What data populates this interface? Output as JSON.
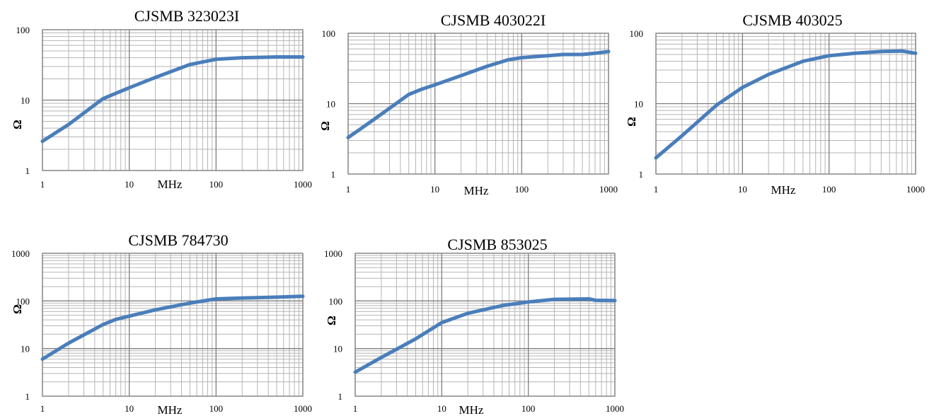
{
  "chart_data": [
    {
      "type": "line",
      "title": "CJSMB 323023I",
      "xlabel": "MHz",
      "ylabel": "Ω",
      "x_scale": "log",
      "y_scale": "log",
      "xlim": [
        1,
        1000
      ],
      "ylim": [
        1,
        100
      ],
      "x_ticks": [
        "1",
        "10",
        "100",
        "1000"
      ],
      "y_ticks": [
        "1",
        "10",
        "100"
      ],
      "grid": true,
      "line_color": "#4a7ebb",
      "series": [
        {
          "points": [
            [
              1,
              2.6
            ],
            [
              2,
              4.5
            ],
            [
              5,
              10.5
            ],
            [
              10,
              15
            ],
            [
              20,
              21
            ],
            [
              50,
              32
            ],
            [
              100,
              38
            ],
            [
              200,
              40
            ],
            [
              500,
              41
            ],
            [
              1000,
              41
            ]
          ]
        }
      ]
    },
    {
      "type": "line",
      "title": "CJSMB 403022I",
      "xlabel": "MHz",
      "ylabel": "Ω",
      "x_scale": "log",
      "y_scale": "log",
      "xlim": [
        1,
        1000
      ],
      "ylim": [
        1,
        100
      ],
      "x_ticks": [
        "1",
        "10",
        "MHz",
        "100",
        "1000"
      ],
      "y_ticks": [
        "1",
        "10",
        "100"
      ],
      "grid": true,
      "line_color": "#4a7ebb",
      "series": [
        {
          "points": [
            [
              1,
              3.3
            ],
            [
              2,
              6
            ],
            [
              5,
              13.5
            ],
            [
              7,
              16
            ],
            [
              10,
              18.5
            ],
            [
              20,
              25
            ],
            [
              40,
              34
            ],
            [
              70,
              42
            ],
            [
              100,
              45
            ],
            [
              200,
              48
            ],
            [
              300,
              50
            ],
            [
              500,
              50
            ],
            [
              700,
              52
            ],
            [
              1000,
              55
            ]
          ]
        }
      ]
    },
    {
      "type": "line",
      "title": "CJSMB 403025",
      "xlabel": "MHz",
      "ylabel": "Ω",
      "x_scale": "log",
      "y_scale": "log",
      "xlim": [
        1,
        1000
      ],
      "ylim": [
        1,
        100
      ],
      "x_ticks": [
        "1",
        "10",
        "100",
        "1000"
      ],
      "y_ticks": [
        "1",
        "10",
        "100"
      ],
      "grid": true,
      "line_color": "#4a7ebb",
      "series": [
        {
          "points": [
            [
              1,
              1.7
            ],
            [
              2,
              3.5
            ],
            [
              5,
              9.5
            ],
            [
              10,
              17
            ],
            [
              20,
              26
            ],
            [
              50,
              40
            ],
            [
              100,
              48
            ],
            [
              200,
              52
            ],
            [
              400,
              55
            ],
            [
              700,
              56
            ],
            [
              1000,
              52
            ]
          ]
        }
      ]
    },
    {
      "type": "line",
      "title": "CJSMB 784730",
      "xlabel": "MHz",
      "ylabel": "Ω",
      "x_scale": "log",
      "y_scale": "log",
      "xlim": [
        1,
        1000
      ],
      "ylim": [
        1,
        1000
      ],
      "x_ticks": [
        "1",
        "10",
        "100",
        "1000"
      ],
      "y_ticks": [
        "1",
        "10",
        "100",
        "1000"
      ],
      "grid": true,
      "line_color": "#4a7ebb",
      "series": [
        {
          "points": [
            [
              1,
              6
            ],
            [
              2,
              13
            ],
            [
              5,
              32
            ],
            [
              7,
              41
            ],
            [
              10,
              48
            ],
            [
              20,
              65
            ],
            [
              50,
              90
            ],
            [
              100,
              110
            ],
            [
              200,
              115
            ],
            [
              500,
              120
            ],
            [
              1000,
              125
            ]
          ]
        }
      ]
    },
    {
      "type": "line",
      "title": "CJSMB 853025",
      "xlabel": "MHz",
      "ylabel": "Ω",
      "x_scale": "log",
      "y_scale": "log",
      "xlim": [
        1,
        1000
      ],
      "ylim": [
        1,
        1000
      ],
      "x_ticks": [
        "1",
        "10",
        "MHz",
        "100",
        "1000"
      ],
      "y_ticks": [
        "1",
        "10",
        "100",
        "1000"
      ],
      "grid": true,
      "line_color": "#4a7ebb",
      "series": [
        {
          "points": [
            [
              1,
              3.2
            ],
            [
              2,
              6.5
            ],
            [
              5,
              16
            ],
            [
              10,
              35
            ],
            [
              20,
              55
            ],
            [
              50,
              80
            ],
            [
              100,
              95
            ],
            [
              200,
              108
            ],
            [
              500,
              110
            ],
            [
              600,
              103
            ],
            [
              1000,
              102
            ]
          ]
        }
      ]
    }
  ]
}
